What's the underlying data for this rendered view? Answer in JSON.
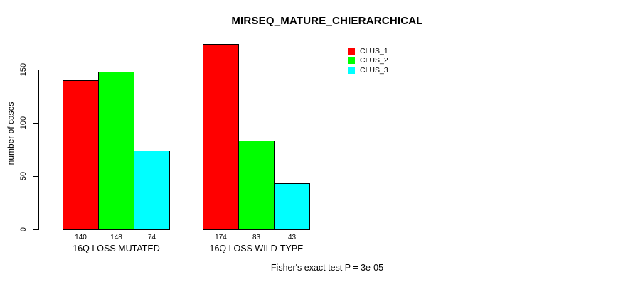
{
  "chart_data": {
    "type": "bar",
    "title": "MIRSEQ_MATURE_CHIERARCHICAL",
    "ylabel": "number of cases",
    "xlabel": "",
    "categories": [
      "16Q LOSS MUTATED",
      "16Q LOSS WILD-TYPE"
    ],
    "series": [
      {
        "name": "CLUS_1",
        "color": "#FF0000",
        "values": [
          140,
          174
        ]
      },
      {
        "name": "CLUS_2",
        "color": "#00FF00",
        "values": [
          148,
          83
        ]
      },
      {
        "name": "CLUS_3",
        "color": "#00FFFF",
        "values": [
          74,
          43
        ]
      }
    ],
    "yticks": [
      0,
      50,
      100,
      150
    ],
    "ylim": [
      0,
      174
    ],
    "grid": false,
    "show_bar_values": true,
    "legend_position": "top-right",
    "annotation": "Fisher's exact test P = 3e-05"
  }
}
